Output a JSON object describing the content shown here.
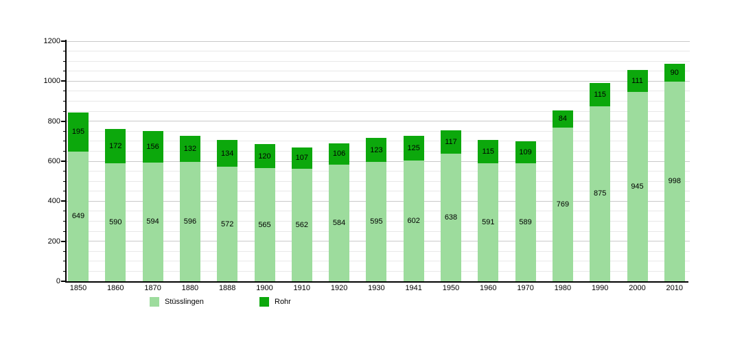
{
  "chart_data": {
    "type": "bar",
    "stacked": true,
    "title": "",
    "xlabel": "",
    "ylabel": "",
    "categories": [
      "1850",
      "1860",
      "1870",
      "1880",
      "1888",
      "1900",
      "1910",
      "1920",
      "1930",
      "1941",
      "1950",
      "1960",
      "1970",
      "1980",
      "1990",
      "2000",
      "2010"
    ],
    "series": [
      {
        "name": "Stüsslingen",
        "color": "#9ddc9d",
        "values": [
          649,
          590,
          594,
          596,
          572,
          565,
          562,
          584,
          595,
          602,
          638,
          591,
          589,
          769,
          875,
          945,
          998
        ]
      },
      {
        "name": "Rohr",
        "color": "#0ca80c",
        "values": [
          195,
          172,
          156,
          132,
          134,
          120,
          107,
          106,
          123,
          125,
          117,
          115,
          109,
          84,
          115,
          111,
          90
        ]
      }
    ],
    "ylim": [
      0,
      1200
    ],
    "y_major_step": 200,
    "y_minor_step": 50,
    "y_tick_labels": [
      "0",
      "200",
      "400",
      "600",
      "800",
      "1000",
      "1200"
    ],
    "grid": "horizontal",
    "value_labels": true,
    "legend_position": "bottom"
  },
  "colors": {
    "axis": "#000000",
    "gridline_minor": "#e8e8e8",
    "gridline_major": "#c9c9c9",
    "background": "#ffffff",
    "label_text": "#000000"
  }
}
